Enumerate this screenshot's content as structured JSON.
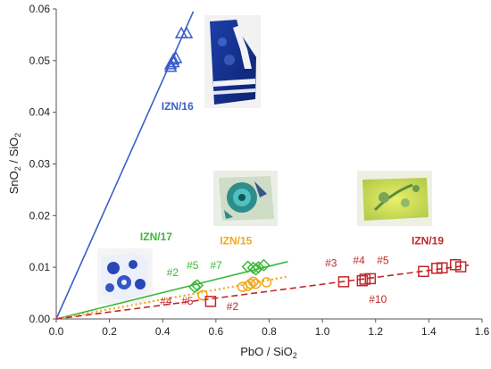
{
  "chart_data": {
    "type": "scatter",
    "xlabel": {
      "main": "PbO / SiO",
      "sub": "2"
    },
    "ylabel": {
      "a": "SnO",
      "a_sub": "2",
      "b": " / SiO",
      "b_sub": "2"
    },
    "xlim": [
      0,
      1.6
    ],
    "ylim": [
      0,
      0.06
    ],
    "x_ticks": [
      "0.0",
      "0.2",
      "0.4",
      "0.6",
      "0.8",
      "1.0",
      "1.2",
      "1.4",
      "1.6"
    ],
    "y_ticks": [
      "0.00",
      "0.01",
      "0.02",
      "0.03",
      "0.04",
      "0.05",
      "0.06"
    ],
    "grid": false,
    "series": [
      {
        "name": "IZN/16",
        "marker": "triangle",
        "color": "#3a5fc8",
        "points": [
          [
            0.43,
            0.0488
          ],
          [
            0.43,
            0.0493
          ],
          [
            0.44,
            0.0497
          ],
          [
            0.44,
            0.0502
          ],
          [
            0.45,
            0.0505
          ],
          [
            0.47,
            0.0553
          ],
          [
            0.49,
            0.0553
          ]
        ],
        "trend": {
          "style": "solid",
          "from": [
            0,
            0
          ],
          "to": [
            0.515,
            0.0595
          ]
        }
      },
      {
        "name": "IZN/17",
        "marker": "diamond",
        "color": "#3cb83c",
        "points": [
          [
            0.52,
            0.0062
          ],
          [
            0.53,
            0.0065
          ],
          [
            0.72,
            0.0101
          ],
          [
            0.74,
            0.0099
          ],
          [
            0.75,
            0.0096
          ],
          [
            0.76,
            0.01
          ],
          [
            0.78,
            0.0104
          ]
        ],
        "trend": {
          "style": "solid",
          "from": [
            0,
            0
          ],
          "to": [
            0.87,
            0.0111
          ]
        }
      },
      {
        "name": "IZN/15",
        "marker": "circle",
        "color": "#f0a81c",
        "points": [
          [
            0.55,
            0.0046
          ],
          [
            0.7,
            0.0062
          ],
          [
            0.72,
            0.0064
          ],
          [
            0.73,
            0.0068
          ],
          [
            0.74,
            0.0072
          ],
          [
            0.75,
            0.0068
          ],
          [
            0.79,
            0.0071
          ]
        ],
        "trend": {
          "style": "dotted",
          "from": [
            0,
            0
          ],
          "to": [
            0.87,
            0.0082
          ]
        }
      },
      {
        "name": "IZN/19",
        "marker": "square",
        "color": "#c0282a",
        "points": [
          [
            0.58,
            0.0034
          ],
          [
            1.08,
            0.0072
          ],
          [
            1.15,
            0.0074
          ],
          [
            1.16,
            0.0077
          ],
          [
            1.18,
            0.0078
          ],
          [
            1.38,
            0.0092
          ],
          [
            1.43,
            0.0098
          ],
          [
            1.45,
            0.0099
          ],
          [
            1.5,
            0.0105
          ],
          [
            1.52,
            0.0101
          ]
        ],
        "trend": {
          "style": "dashed",
          "from": [
            0,
            0
          ],
          "to": [
            1.55,
            0.0104
          ]
        }
      }
    ],
    "annotations": [
      {
        "text": "IZN/16",
        "x": 0.395,
        "y": 0.0405,
        "color": "#3a5fc8",
        "bold": true
      },
      {
        "text": "IZN/17",
        "x": 0.315,
        "y": 0.0152,
        "color": "#3cb83c",
        "bold": true
      },
      {
        "text": "IZN/15",
        "x": 0.615,
        "y": 0.0144,
        "color": "#f0a81c",
        "bold": true
      },
      {
        "text": "IZN/19",
        "x": 1.335,
        "y": 0.0144,
        "color": "#c0282a",
        "bold": true
      },
      {
        "text": "#2",
        "x": 0.415,
        "y": 0.0083,
        "color": "#3cb83c"
      },
      {
        "text": "#5",
        "x": 0.49,
        "y": 0.0097,
        "color": "#3cb83c"
      },
      {
        "text": "#7",
        "x": 0.578,
        "y": 0.0097,
        "color": "#3cb83c"
      },
      {
        "text": "#4",
        "x": 0.39,
        "y": 0.0028,
        "color": "#c0282a"
      },
      {
        "text": "#5",
        "x": 0.47,
        "y": 0.0028,
        "color": "#c0282a"
      },
      {
        "text": "#2",
        "x": 0.64,
        "y": 0.0017,
        "color": "#c0282a"
      },
      {
        "text": "#3",
        "x": 1.01,
        "y": 0.0101,
        "color": "#c0282a"
      },
      {
        "text": "#4",
        "x": 1.115,
        "y": 0.0106,
        "color": "#c0282a"
      },
      {
        "text": "#5",
        "x": 1.205,
        "y": 0.0106,
        "color": "#c0282a"
      },
      {
        "text": "#10",
        "x": 1.175,
        "y": 0.0031,
        "color": "#c0282a"
      }
    ],
    "photos": [
      {
        "subject": "tile-fragment-izn16",
        "description": "blue and white fragment"
      },
      {
        "subject": "tile-fragment-izn17",
        "description": "blue floral fragment"
      },
      {
        "subject": "tile-fragment-izn15",
        "description": "turquoise carnation fragment"
      },
      {
        "subject": "tile-fragment-izn19",
        "description": "yellow-green floral fragment"
      }
    ]
  }
}
